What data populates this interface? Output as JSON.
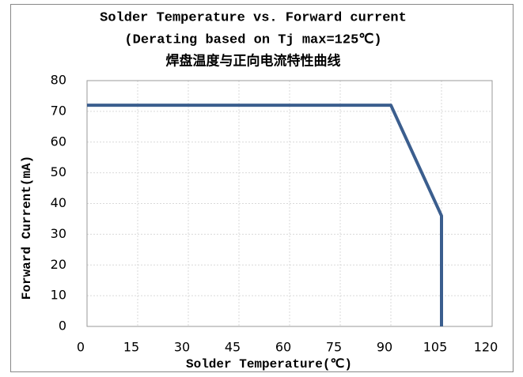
{
  "chart_data": {
    "type": "line",
    "title": [
      "Solder Temperature vs. Forward current",
      "(Derating based on Tj max=125℃)",
      "焊盘温度与正向电流特性曲线"
    ],
    "x_label": "Solder Temperature(℃)",
    "y_label": "Forward Current(mA)",
    "x": [
      0,
      90,
      105,
      105
    ],
    "series": [
      {
        "color": "#3b5e8e",
        "values": [
          72,
          72,
          36,
          0
        ]
      }
    ],
    "xlim": [
      0,
      120
    ],
    "xticks": [
      0,
      15,
      30,
      45,
      60,
      75,
      90,
      105,
      120
    ],
    "ylim": [
      0,
      80
    ],
    "yticks": [
      0,
      10,
      20,
      30,
      40,
      50,
      60,
      70,
      80
    ],
    "grid": true
  }
}
